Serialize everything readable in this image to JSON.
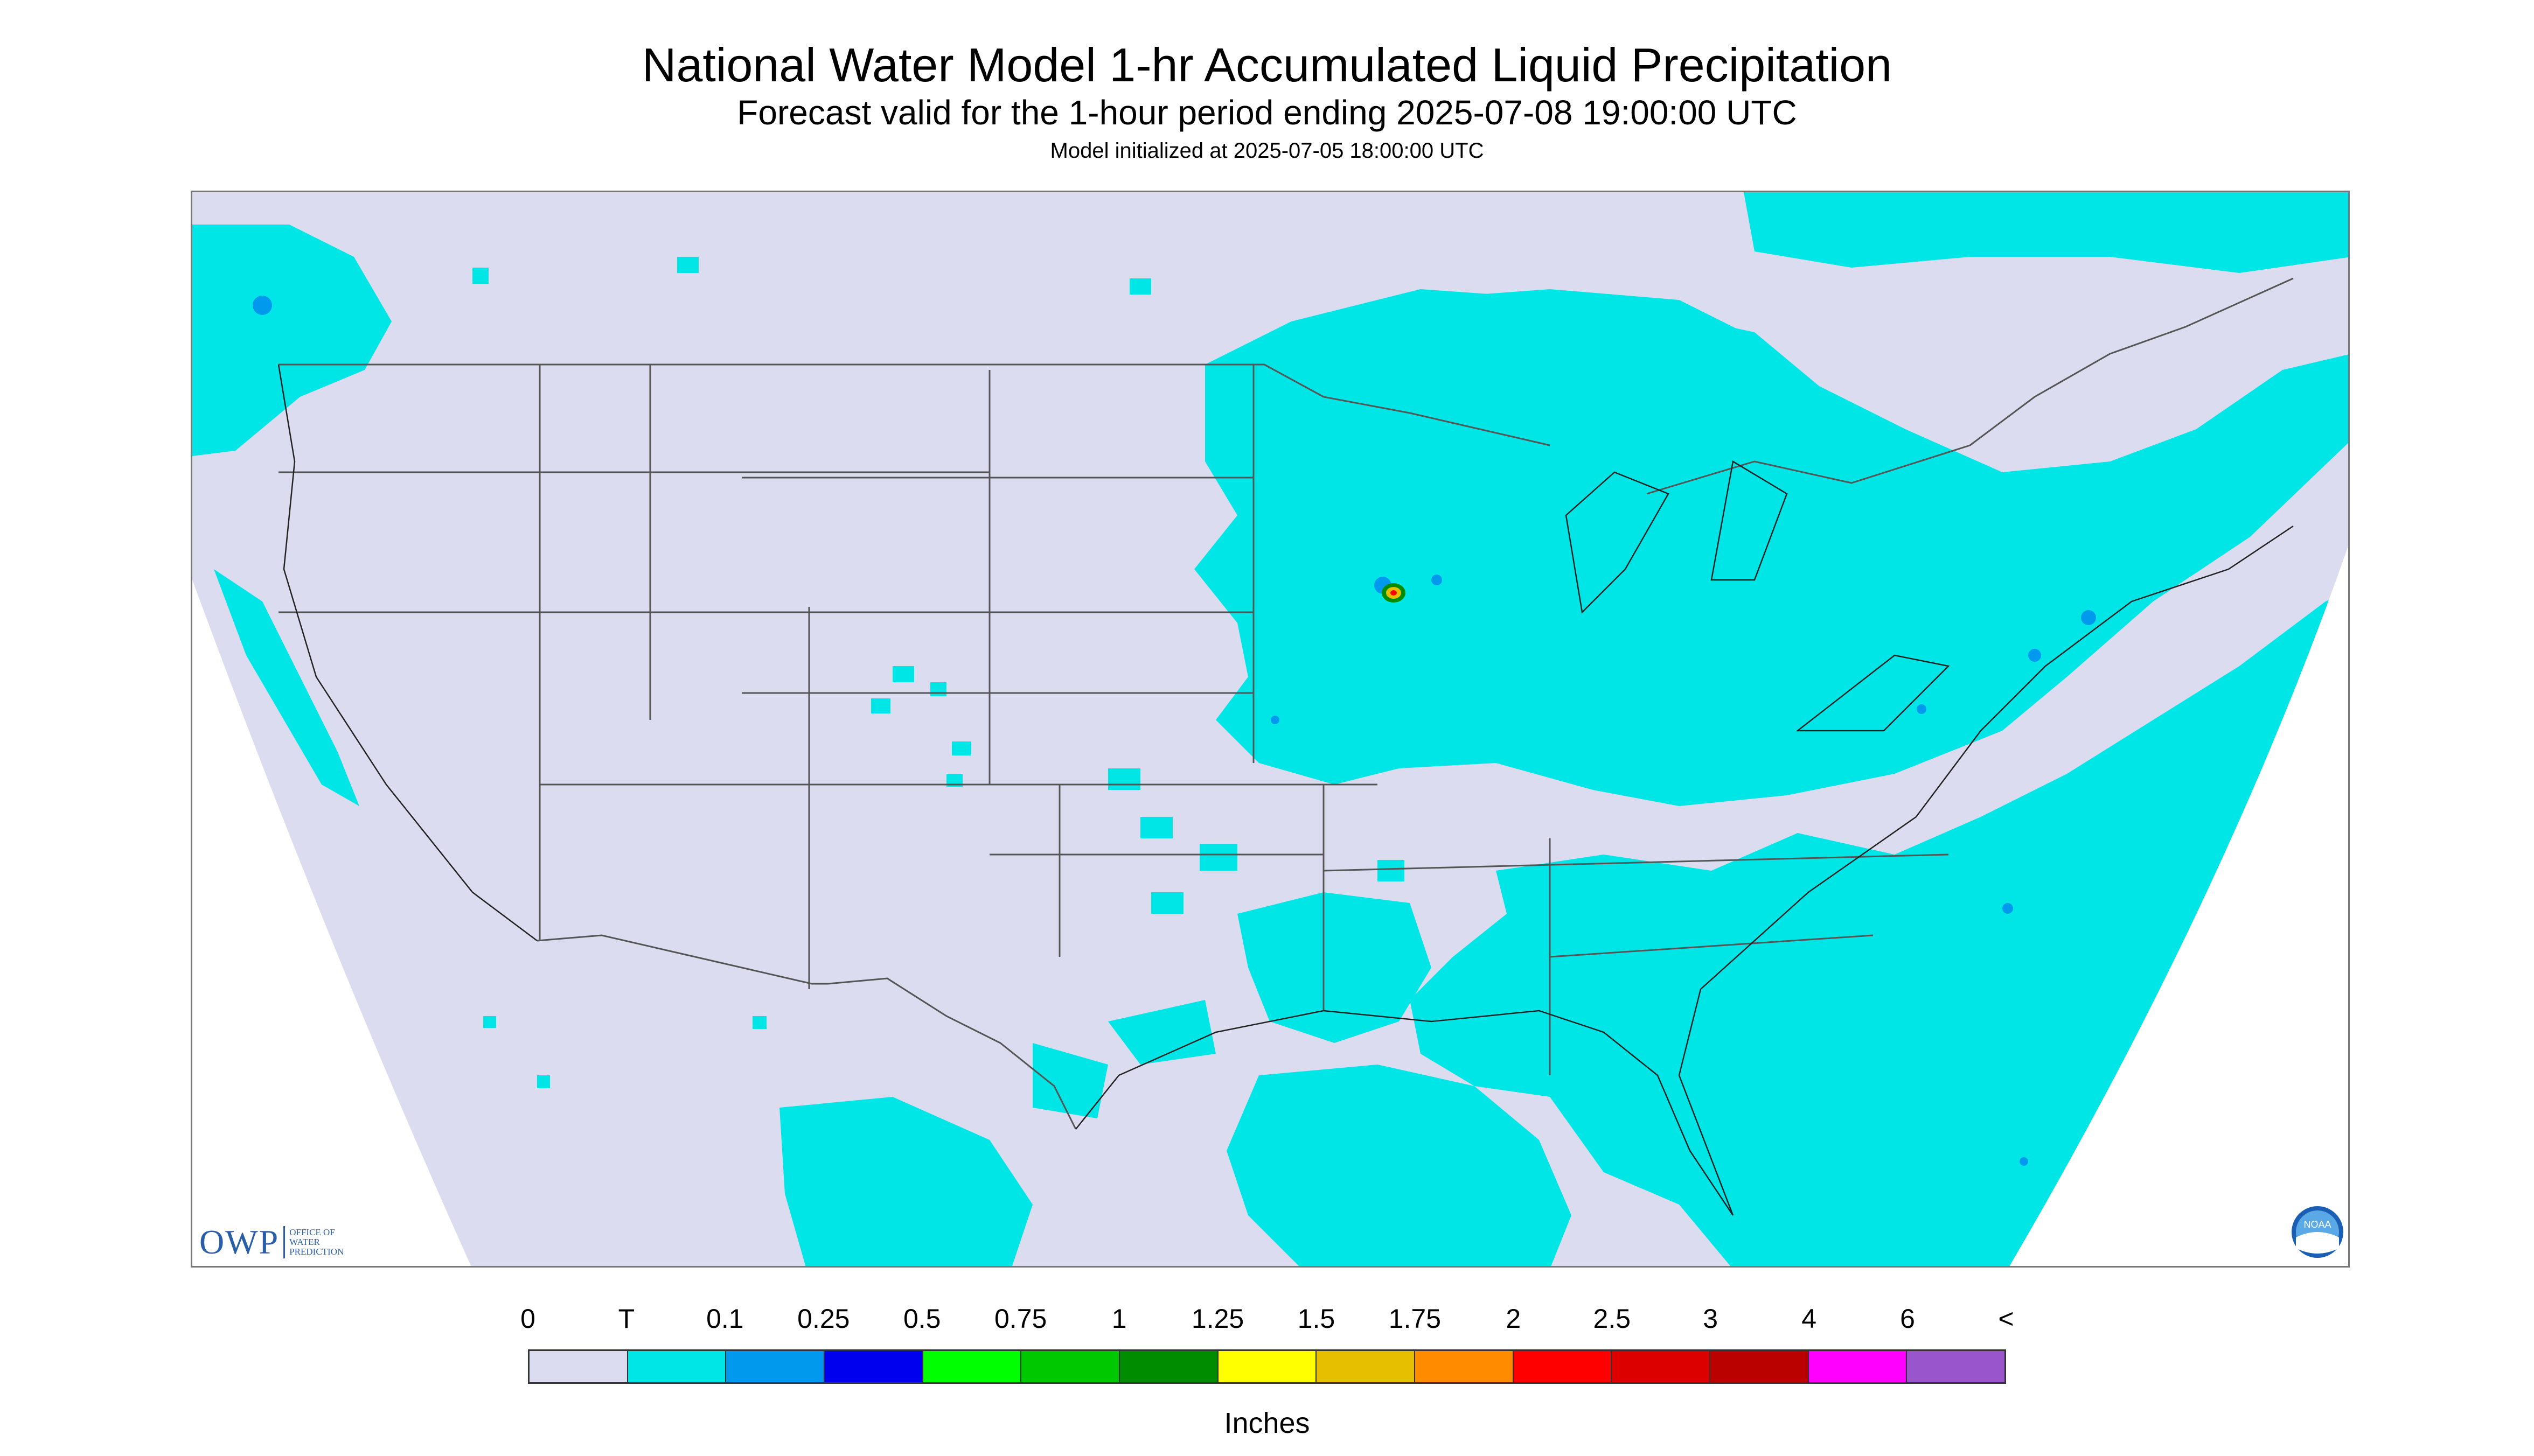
{
  "title": "National Water Model 1-hr Accumulated Liquid Precipitation",
  "subtitle": "Forecast valid for the 1-hour period ending 2025-07-08 19:00:00 UTC",
  "init_line": "Model initialized at 2025-07-05 18:00:00 UTC",
  "logo_owp": {
    "abbr": "OWP",
    "lines": [
      "OFFICE OF",
      "WATER",
      "PREDICTION"
    ]
  },
  "logo_noaa": "NOAA",
  "legend": {
    "units": "Inches",
    "labels": [
      "0",
      "T",
      "0.1",
      "0.25",
      "0.5",
      "0.75",
      "1",
      "1.25",
      "1.5",
      "1.75",
      "2",
      "2.5",
      "3",
      "4",
      "6",
      "<"
    ],
    "colors": [
      "#dcdcf0",
      "#00e6e6",
      "#0099ee",
      "#0000ee",
      "#00ff00",
      "#00c800",
      "#008c00",
      "#ffff00",
      "#e6c000",
      "#ff8c00",
      "#ff0000",
      "#dd0000",
      "#bb0000",
      "#ff00ff",
      "#9955cc"
    ]
  },
  "colors": {
    "background": "#dcdcf0",
    "trace": "#00e6e6",
    "light": "#0099ee",
    "boundary": "#555555"
  }
}
